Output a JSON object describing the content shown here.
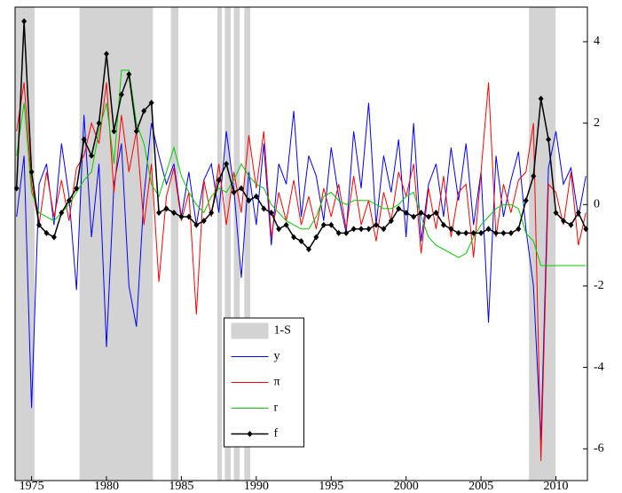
{
  "chart_data": {
    "type": "line",
    "xlim": [
      1973.9,
      2012.1
    ],
    "ylim": [
      -6.78,
      4.85
    ],
    "xticks": [
      1975,
      1980,
      1985,
      1990,
      1995,
      2000,
      2005,
      2010
    ],
    "yticks": [
      4,
      2,
      0,
      -2,
      -4,
      -6
    ],
    "legend": "lower-center",
    "shading": {
      "name": "1-S",
      "color": "#d3d3d3",
      "intervals": [
        [
          1973.9,
          1975.2
        ],
        [
          1978.2,
          1983.1
        ],
        [
          1984.3,
          1984.8
        ],
        [
          1987.4,
          1987.7
        ],
        [
          1987.9,
          1988.3
        ],
        [
          1988.5,
          1988.9
        ],
        [
          1989.2,
          1989.6
        ],
        [
          2008.2,
          2009.98
        ]
      ]
    },
    "x": [
      1974,
      1974.5,
      1975,
      1975.5,
      1976,
      1976.5,
      1977,
      1977.5,
      1978,
      1978.5,
      1979,
      1979.5,
      1980,
      1980.5,
      1981,
      1981.5,
      1982,
      1982.5,
      1983,
      1983.5,
      1984,
      1984.5,
      1985,
      1985.5,
      1986,
      1986.5,
      1987,
      1987.5,
      1988,
      1988.5,
      1989,
      1989.5,
      1990,
      1990.5,
      1991,
      1991.5,
      1992,
      1992.5,
      1993,
      1993.5,
      1994,
      1994.5,
      1995,
      1995.5,
      1996,
      1996.5,
      1997,
      1997.5,
      1998,
      1998.5,
      1999,
      1999.5,
      2000,
      2000.5,
      2001,
      2001.5,
      2002,
      2002.5,
      2003,
      2003.5,
      2004,
      2004.5,
      2005,
      2005.5,
      2006,
      2006.5,
      2007,
      2007.5,
      2008,
      2008.5,
      2009,
      2009.5,
      2010,
      2010.5,
      2011,
      2011.5,
      2012
    ],
    "series": [
      {
        "name": "y",
        "color": "#0000ff",
        "values": [
          -0.3,
          1.2,
          -5.0,
          0.5,
          1.0,
          -0.5,
          1.5,
          0.2,
          -2.1,
          2.2,
          -0.8,
          1.0,
          -3.5,
          0.5,
          1.5,
          -2.0,
          -3.0,
          0.2,
          2.0,
          1.2,
          0.5,
          1.0,
          -0.3,
          0.8,
          -0.5,
          0.6,
          1.0,
          -0.2,
          1.8,
          0.4,
          -1.8,
          0.8,
          -0.5,
          1.5,
          -1.0,
          1.0,
          0.5,
          2.3,
          -0.3,
          1.2,
          0.7,
          -0.4,
          1.4,
          0.2,
          -0.7,
          1.8,
          0.4,
          2.5,
          -0.5,
          1.2,
          0.3,
          1.6,
          -0.8,
          2.0,
          -0.9,
          0.5,
          1.0,
          -0.3,
          1.4,
          0.1,
          1.5,
          -0.5,
          0.8,
          -2.9,
          1.2,
          -0.3,
          0.6,
          1.3,
          -0.6,
          -2.0,
          -5.8,
          0.9,
          1.8,
          0.5,
          0.9,
          -0.3,
          0.7
        ]
      },
      {
        "name": "π",
        "color": "#ff0000",
        "values": [
          1.8,
          3.0,
          0.5,
          -0.5,
          0.8,
          -0.3,
          0.6,
          -0.4,
          0.9,
          1.2,
          2.0,
          1.5,
          3.0,
          0.3,
          2.2,
          0.8,
          1.8,
          -0.5,
          1.0,
          -1.9,
          0.2,
          0.9,
          -0.4,
          0.3,
          -2.7,
          0.6,
          -0.3,
          1.0,
          -0.5,
          0.8,
          -0.2,
          1.7,
          0.4,
          1.8,
          -0.8,
          0.3,
          -0.4,
          0.6,
          -0.5,
          0.2,
          -0.6,
          0.4,
          -0.3,
          0.5,
          -0.6,
          0.7,
          -0.5,
          0.1,
          -0.9,
          0.3,
          -0.4,
          0.8,
          0.2,
          1.0,
          -1.2,
          0.4,
          -0.6,
          0.7,
          -0.8,
          0.3,
          0.5,
          -1.3,
          0.8,
          3.0,
          -0.8,
          0.5,
          -0.2,
          0.6,
          0.8,
          2.0,
          -6.3,
          0.5,
          0.3,
          -0.5,
          0.8,
          -1.0,
          -0.2
        ]
      },
      {
        "name": "r",
        "color": "#00cc00",
        "values": [
          1.2,
          2.5,
          0.3,
          -0.2,
          -0.3,
          -0.4,
          -0.2,
          0.0,
          0.3,
          0.6,
          0.8,
          1.8,
          2.5,
          1.0,
          3.3,
          3.3,
          2.0,
          1.5,
          0.5,
          0.2,
          0.8,
          1.4,
          0.7,
          0.3,
          0.0,
          -0.2,
          0.2,
          0.4,
          0.3,
          0.6,
          1.0,
          0.7,
          0.5,
          0.4,
          0.0,
          -0.2,
          -0.4,
          -0.5,
          -0.6,
          -0.6,
          -0.3,
          0.2,
          0.3,
          0.1,
          0.0,
          0.1,
          0.1,
          0.1,
          0.0,
          -0.1,
          -0.1,
          0.0,
          0.2,
          0.3,
          -0.3,
          -0.8,
          -1.0,
          -1.1,
          -1.2,
          -1.3,
          -1.2,
          -0.8,
          -0.5,
          -0.3,
          -0.1,
          0.0,
          0.0,
          -0.1,
          -0.7,
          -0.9,
          -1.5,
          -1.5,
          -1.5,
          -1.5,
          -1.5,
          -1.5,
          -1.5
        ]
      },
      {
        "name": "f",
        "color": "#000000",
        "marker": "diamond",
        "values": [
          0.4,
          4.5,
          0.8,
          -0.5,
          -0.7,
          -0.8,
          -0.2,
          0.1,
          0.4,
          1.6,
          1.2,
          2.0,
          3.7,
          1.8,
          2.7,
          3.2,
          1.8,
          2.3,
          2.5,
          -0.2,
          -0.1,
          -0.2,
          -0.3,
          -0.3,
          -0.5,
          -0.4,
          -0.2,
          0.6,
          1.0,
          0.3,
          0.4,
          0.1,
          0.2,
          -0.1,
          -0.2,
          -0.6,
          -0.5,
          -0.8,
          -0.9,
          -1.1,
          -0.8,
          -0.5,
          -0.5,
          -0.7,
          -0.7,
          -0.6,
          -0.6,
          -0.6,
          -0.5,
          -0.6,
          -0.4,
          -0.1,
          -0.2,
          -0.3,
          -0.2,
          -0.3,
          -0.2,
          -0.5,
          -0.6,
          -0.7,
          -0.7,
          -0.7,
          -0.7,
          -0.6,
          -0.7,
          -0.7,
          -0.7,
          -0.6,
          0.1,
          0.7,
          2.6,
          1.6,
          -0.2,
          -0.4,
          -0.5,
          -0.2,
          -0.6
        ]
      }
    ]
  }
}
